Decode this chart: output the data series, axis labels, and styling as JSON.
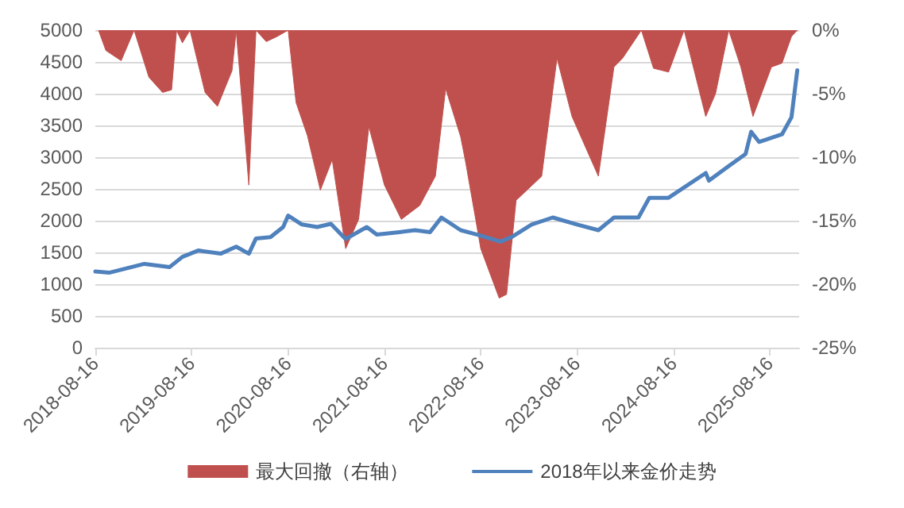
{
  "chart_data": {
    "type": "line",
    "legend": "bottom",
    "grid": "y",
    "marker": "none",
    "line_style": "solid",
    "xlim": [
      "2018-08-16",
      "2025-12-05"
    ],
    "xticks": [
      "2018-08-16",
      "2019-08-16",
      "2020-08-16",
      "2021-08-16",
      "2022-08-16",
      "2023-08-16",
      "2024-08-16",
      "2025-08-16"
    ],
    "ylim": [
      0,
      5000
    ],
    "yticks": [
      0,
      500,
      1000,
      1500,
      2000,
      2500,
      3000,
      3500,
      4000,
      4500,
      5000
    ],
    "y2lim": [
      -25,
      0
    ],
    "y2ticks": [
      {
        "value": -25,
        "label": "-25%"
      },
      {
        "value": -20,
        "label": "-20%"
      },
      {
        "value": -15,
        "label": "-15%"
      },
      {
        "value": -10,
        "label": "-10%"
      },
      {
        "value": -5,
        "label": "-5%"
      },
      {
        "value": 0,
        "label": "0%"
      }
    ],
    "series": [
      {
        "name": "最大回撤（右轴）",
        "type": "area",
        "axis": "y2",
        "color": "#c0504d",
        "x": [
          "2018-08-28",
          "2018-09-25",
          "2018-11-22",
          "2019-01-10",
          "2019-03-07",
          "2019-04-28",
          "2019-06-01",
          "2019-06-20",
          "2019-07-12",
          "2019-08-10",
          "2019-10-06",
          "2019-11-22",
          "2020-01-16",
          "2020-02-01",
          "2020-03-20",
          "2020-04-16",
          "2020-05-25",
          "2020-07-05",
          "2020-08-16",
          "2020-09-15",
          "2020-10-28",
          "2020-12-16",
          "2021-01-30",
          "2021-03-22",
          "2021-05-10",
          "2021-06-18",
          "2021-08-16",
          "2021-10-19",
          "2021-12-28",
          "2022-02-25",
          "2022-04-05",
          "2022-06-01",
          "2022-06-19",
          "2022-07-28",
          "2022-08-16",
          "2022-10-25",
          "2022-11-22",
          "2022-12-28",
          "2023-04-04",
          "2023-06-01",
          "2023-07-28",
          "2023-11-05",
          "2024-01-03",
          "2024-02-05",
          "2024-04-16",
          "2024-06-01",
          "2024-07-28",
          "2024-09-25",
          "2024-12-16",
          "2025-01-22",
          "2025-03-13",
          "2025-04-28",
          "2025-06-13",
          "2025-08-22",
          "2025-10-01",
          "2025-11-06",
          "2025-11-28"
        ],
        "values": [
          0,
          -1.6,
          -2.4,
          0,
          -3.7,
          -4.9,
          -4.7,
          0,
          -1.0,
          0,
          -4.9,
          -6.0,
          -3.2,
          0,
          -12.2,
          0,
          -0.9,
          -0.5,
          0,
          -5.7,
          -8.3,
          -12.6,
          -10.2,
          -17.2,
          -14.9,
          -7.6,
          -12.2,
          -14.9,
          -13.8,
          -11.5,
          -4.6,
          -8.4,
          -10.3,
          -14.9,
          -17.2,
          -21.1,
          -20.8,
          -13.4,
          -11.5,
          -2.2,
          -6.8,
          -11.5,
          -2.9,
          -2.2,
          0,
          -3.0,
          -3.3,
          0,
          -6.8,
          -5.0,
          0,
          -2.9,
          -6.8,
          -2.9,
          -2.6,
          -0.5,
          0
        ]
      },
      {
        "name": "2018年以来金价走势",
        "color": "#4f81bd",
        "x": [
          "2018-08-16",
          "2018-10-07",
          "2019-02-18",
          "2019-05-25",
          "2019-07-12",
          "2019-09-10",
          "2019-12-04",
          "2020-02-01",
          "2020-03-20",
          "2020-04-16",
          "2020-06-10",
          "2020-07-28",
          "2020-08-16",
          "2020-10-07",
          "2020-12-04",
          "2021-01-25",
          "2021-03-22",
          "2021-06-10",
          "2021-07-18",
          "2021-10-12",
          "2021-12-10",
          "2022-02-05",
          "2022-03-20",
          "2022-06-01",
          "2022-08-03",
          "2022-10-30",
          "2022-12-10",
          "2023-02-25",
          "2023-05-16",
          "2023-08-16",
          "2023-11-05",
          "2024-01-03",
          "2024-04-05",
          "2024-05-16",
          "2024-07-28",
          "2024-12-16",
          "2024-12-28",
          "2025-03-16",
          "2025-05-16",
          "2025-06-06",
          "2025-07-06",
          "2025-10-01",
          "2025-11-06",
          "2025-11-28"
        ],
        "values": [
          1200,
          1180,
          1320,
          1270,
          1430,
          1530,
          1480,
          1590,
          1480,
          1720,
          1740,
          1900,
          2080,
          1940,
          1900,
          1950,
          1710,
          1900,
          1780,
          1820,
          1850,
          1820,
          2050,
          1850,
          1780,
          1670,
          1740,
          1940,
          2050,
          1940,
          1850,
          2050,
          2050,
          2360,
          2360,
          2750,
          2630,
          2870,
          3050,
          3400,
          3240,
          3360,
          3630,
          4370
        ]
      }
    ]
  }
}
